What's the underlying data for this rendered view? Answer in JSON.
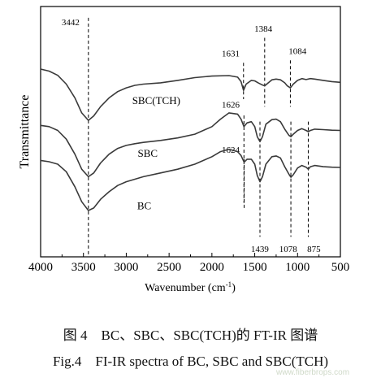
{
  "chart_data": {
    "type": "line",
    "xlabel": "Wavenumber (cm",
    "xlabel_sup": "-1",
    "xlabel_close": ")",
    "ylabel": "Transmittance",
    "xlim": [
      4000,
      500
    ],
    "x_reversed": true,
    "x_ticks": [
      "4000",
      "3500",
      "3000",
      "2500",
      "2000",
      "1500",
      "1000",
      "500"
    ],
    "y_ticks_shown": false,
    "grid": false,
    "series": [
      {
        "name": "SBC(TCH)",
        "x": [
          4000,
          3900,
          3800,
          3700,
          3600,
          3520,
          3442,
          3380,
          3300,
          3200,
          3100,
          3000,
          2900,
          2800,
          2600,
          2400,
          2200,
          2000,
          1800,
          1700,
          1660,
          1631,
          1600,
          1540,
          1500,
          1460,
          1420,
          1384,
          1350,
          1300,
          1250,
          1200,
          1150,
          1120,
          1084,
          1050,
          1000,
          950,
          900,
          850,
          800,
          700,
          600,
          500
        ],
        "y": [
          0.75,
          0.742,
          0.725,
          0.69,
          0.635,
          0.575,
          0.545,
          0.563,
          0.6,
          0.635,
          0.66,
          0.675,
          0.685,
          0.69,
          0.695,
          0.705,
          0.716,
          0.722,
          0.724,
          0.718,
          0.7,
          0.665,
          0.69,
          0.705,
          0.703,
          0.695,
          0.688,
          0.683,
          0.693,
          0.707,
          0.71,
          0.707,
          0.695,
          0.683,
          0.675,
          0.69,
          0.705,
          0.712,
          0.708,
          0.712,
          0.71,
          0.705,
          0.7,
          0.697
        ]
      },
      {
        "name": "SBC",
        "x": [
          4000,
          3900,
          3800,
          3700,
          3600,
          3520,
          3442,
          3380,
          3300,
          3200,
          3100,
          3000,
          2900,
          2800,
          2600,
          2400,
          2200,
          2000,
          1900,
          1800,
          1700,
          1660,
          1626,
          1590,
          1540,
          1500,
          1470,
          1439,
          1410,
          1370,
          1300,
          1250,
          1200,
          1150,
          1100,
          1078,
          1050,
          1000,
          950,
          900,
          875,
          850,
          800,
          700,
          600,
          500
        ],
        "y": [
          0.525,
          0.52,
          0.505,
          0.47,
          0.41,
          0.35,
          0.32,
          0.335,
          0.375,
          0.41,
          0.433,
          0.445,
          0.452,
          0.457,
          0.465,
          0.475,
          0.49,
          0.52,
          0.55,
          0.575,
          0.57,
          0.55,
          0.52,
          0.535,
          0.54,
          0.52,
          0.48,
          0.46,
          0.48,
          0.53,
          0.548,
          0.55,
          0.54,
          0.51,
          0.485,
          0.48,
          0.49,
          0.505,
          0.512,
          0.505,
          0.5,
          0.505,
          0.51,
          0.508,
          0.506,
          0.505
        ]
      },
      {
        "name": "BC",
        "x": [
          4000,
          3900,
          3800,
          3700,
          3600,
          3520,
          3442,
          3380,
          3300,
          3200,
          3100,
          3000,
          2900,
          2800,
          2600,
          2400,
          2200,
          2000,
          1900,
          1800,
          1700,
          1660,
          1624,
          1590,
          1540,
          1500,
          1470,
          1439,
          1410,
          1370,
          1300,
          1250,
          1200,
          1150,
          1100,
          1078,
          1050,
          1000,
          950,
          900,
          875,
          850,
          800,
          700,
          600,
          500
        ],
        "y": [
          0.385,
          0.38,
          0.37,
          0.34,
          0.28,
          0.22,
          0.185,
          0.195,
          0.23,
          0.26,
          0.285,
          0.3,
          0.31,
          0.32,
          0.335,
          0.35,
          0.37,
          0.4,
          0.42,
          0.43,
          0.42,
          0.405,
          0.378,
          0.39,
          0.39,
          0.37,
          0.325,
          0.3,
          0.32,
          0.37,
          0.4,
          0.403,
          0.395,
          0.36,
          0.33,
          0.318,
          0.328,
          0.355,
          0.365,
          0.358,
          0.35,
          0.36,
          0.365,
          0.36,
          0.358,
          0.357
        ]
      }
    ],
    "series_labels": [
      {
        "text": "SBC(TCH)",
        "x": 2650,
        "y": 0.61
      },
      {
        "text": "SBC",
        "x": 2750,
        "y": 0.4
      },
      {
        "text": "BC",
        "x": 2790,
        "y": 0.19
      }
    ],
    "peak_markers": [
      {
        "x": 3442,
        "label": "3442",
        "label_x": 3650,
        "label_y": 0.925,
        "top": 0.955,
        "bottom": 0.0
      },
      {
        "x": 1631,
        "label": "1631",
        "label_x": 1780,
        "label_y": 0.8,
        "top": 0.775,
        "bottom": 0.63
      },
      {
        "x": 1384,
        "label": "1384",
        "label_x": 1400,
        "label_y": 0.9,
        "top": 0.875,
        "bottom": 0.6
      },
      {
        "x": 1084,
        "label": "1084",
        "label_x": 1000,
        "label_y": 0.81,
        "top": 0.785,
        "bottom": 0.6
      },
      {
        "x": 1626,
        "label": "1626",
        "label_x": 1780,
        "label_y": 0.595,
        "top": 0.565,
        "bottom": 0.215
      },
      {
        "x": 1624,
        "label": "1624",
        "label_x": 1780,
        "label_y": 0.415,
        "top": 0.39,
        "bottom": 0.19
      },
      {
        "x": 1439,
        "label": "1439",
        "label_x": 1440,
        "label_y": 0.02,
        "top": 0.54,
        "bottom": 0.08
      },
      {
        "x": 1078,
        "label": "1078",
        "label_x": 1110,
        "label_y": 0.02,
        "top": 0.54,
        "bottom": 0.08
      },
      {
        "x": 875,
        "label": "875",
        "label_x": 810,
        "label_y": 0.02,
        "top": 0.54,
        "bottom": 0.08
      }
    ]
  },
  "caption": {
    "line1": "图 4　BC、SBC、SBC(TCH)的 FT-IR 图谱",
    "line2": "Fig.4　FI-IR spectra of BC, SBC and SBC(TCH)"
  },
  "watermark": "www.fiberbrops.com",
  "colors": {
    "line": "#3a3a3a",
    "axis": "#000000"
  }
}
